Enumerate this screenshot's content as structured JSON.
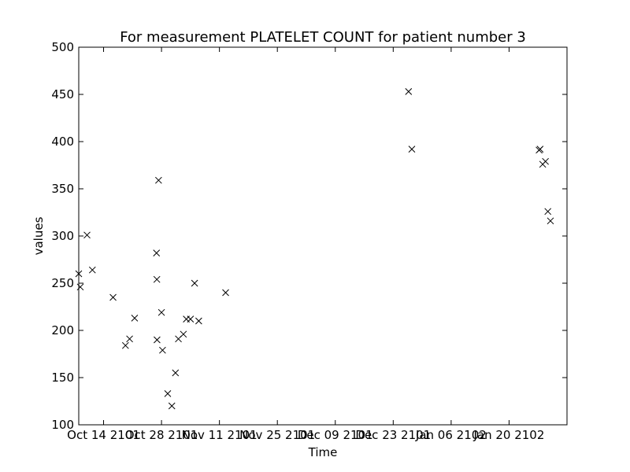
{
  "chart_data": {
    "type": "scatter",
    "title": "For measurement PLATELET COUNT for patient number 3",
    "xlabel": "Time",
    "ylabel": "values",
    "marker": "x",
    "marker_color": "#000000",
    "grid": false,
    "legend": "none",
    "xlim": [
      "2101-10-08",
      "2102-02-03"
    ],
    "ylim": [
      100,
      500
    ],
    "y_ticks": [
      100,
      150,
      200,
      250,
      300,
      350,
      400,
      450,
      500
    ],
    "x_ticks": [
      {
        "date": "2101-10-14",
        "label": "Oct 14 2101"
      },
      {
        "date": "2101-10-28",
        "label": "Oct 28 2101"
      },
      {
        "date": "2101-11-11",
        "label": "Nov 11 2101"
      },
      {
        "date": "2101-11-25",
        "label": "Nov 25 2101"
      },
      {
        "date": "2101-12-09",
        "label": "Dec 09 2101"
      },
      {
        "date": "2101-12-23",
        "label": "Dec 23 2101"
      },
      {
        "date": "2102-01-06",
        "label": "Jan 06 2102"
      },
      {
        "date": "2102-01-20",
        "label": "Jan 20 2102"
      }
    ],
    "points": [
      {
        "x": "2101-10-08T00:00",
        "y": 260
      },
      {
        "x": "2101-10-08T09:00",
        "y": 246
      },
      {
        "x": "2101-10-10T00:00",
        "y": 301
      },
      {
        "x": "2101-10-11T07:00",
        "y": 264
      },
      {
        "x": "2101-10-16T07:00",
        "y": 235
      },
      {
        "x": "2101-10-19T07:00",
        "y": 184
      },
      {
        "x": "2101-10-20T07:00",
        "y": 191
      },
      {
        "x": "2101-10-21T12:00",
        "y": 213
      },
      {
        "x": "2101-10-26T19:00",
        "y": 282
      },
      {
        "x": "2101-10-26T21:00",
        "y": 254
      },
      {
        "x": "2101-10-26T22:00",
        "y": 190
      },
      {
        "x": "2101-10-27T07:00",
        "y": 359
      },
      {
        "x": "2101-10-28T00:00",
        "y": 219
      },
      {
        "x": "2101-10-28T06:00",
        "y": 179
      },
      {
        "x": "2101-10-29T12:00",
        "y": 133
      },
      {
        "x": "2101-10-30T12:00",
        "y": 120
      },
      {
        "x": "2101-10-31T09:00",
        "y": 155
      },
      {
        "x": "2101-11-01T02:00",
        "y": 191
      },
      {
        "x": "2101-11-02T07:00",
        "y": 196
      },
      {
        "x": "2101-11-03T00:00",
        "y": 212
      },
      {
        "x": "2101-11-04T00:00",
        "y": 212
      },
      {
        "x": "2101-11-05T00:00",
        "y": 250
      },
      {
        "x": "2101-11-06T00:00",
        "y": 210
      },
      {
        "x": "2101-11-12T12:00",
        "y": 240
      },
      {
        "x": "2101-12-26T17:00",
        "y": 453
      },
      {
        "x": "2101-12-27T12:00",
        "y": 392
      },
      {
        "x": "2102-01-27T06:00",
        "y": 391
      },
      {
        "x": "2102-01-27T12:00",
        "y": 392
      },
      {
        "x": "2102-01-28T03:00",
        "y": 376
      },
      {
        "x": "2102-01-28T19:00",
        "y": 379
      },
      {
        "x": "2102-01-29T09:00",
        "y": 326
      },
      {
        "x": "2102-01-30T00:00",
        "y": 316
      }
    ]
  }
}
